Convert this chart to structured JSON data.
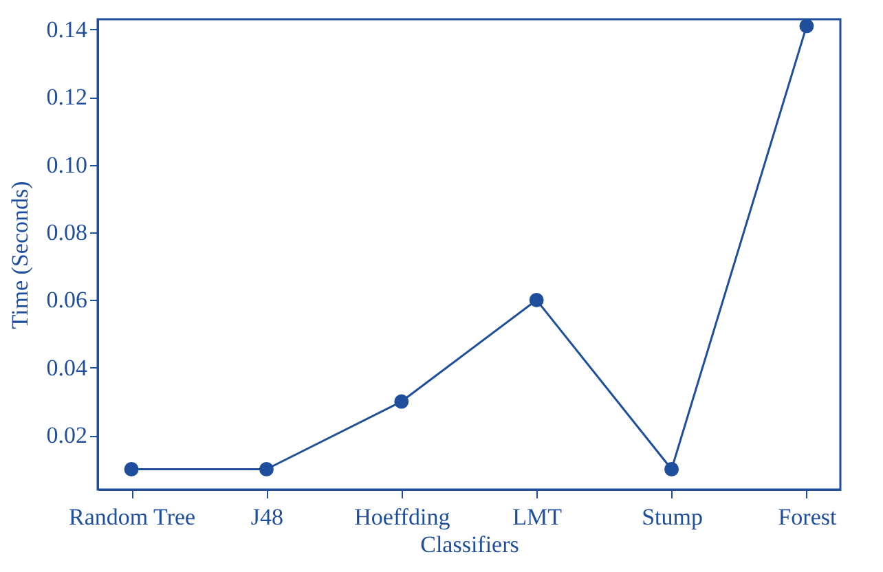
{
  "chart_data": {
    "type": "line",
    "xlabel": "Classifiers",
    "ylabel": "Time (Seconds)",
    "categories": [
      "Random Tree",
      "J48",
      "Hoeffding",
      "LMT",
      "Stump",
      "Forest"
    ],
    "series": [
      {
        "color": "#1f4e9c",
        "values": [
          0.01,
          0.01,
          0.03,
          0.06,
          0.01,
          0.141
        ]
      }
    ],
    "ylim": [
      0.004,
      0.143
    ],
    "yticks": [
      {
        "value": 0.02,
        "label": "0.02"
      },
      {
        "value": 0.04,
        "label": "0.04"
      },
      {
        "value": 0.06,
        "label": "0.06"
      },
      {
        "value": 0.08,
        "label": "0.08"
      },
      {
        "value": 0.1,
        "label": "0.10"
      },
      {
        "value": 0.12,
        "label": "0.12"
      },
      {
        "value": 0.14,
        "label": "0.14"
      }
    ],
    "marker": "circle",
    "line_style": "solid",
    "grid": false
  }
}
